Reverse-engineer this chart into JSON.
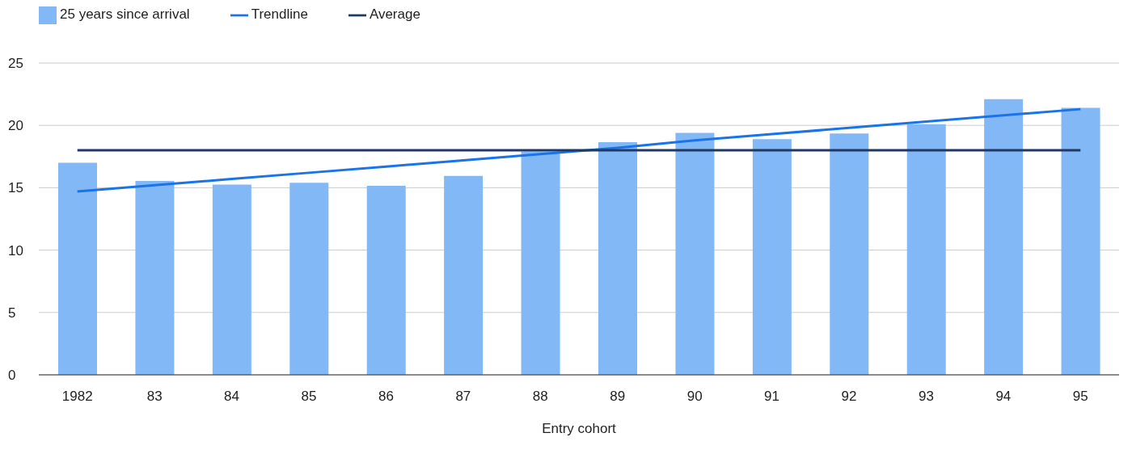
{
  "chart_data": {
    "type": "bar",
    "xlabel": "Entry cohort",
    "categories": [
      "1982",
      "83",
      "84",
      "85",
      "86",
      "87",
      "88",
      "89",
      "90",
      "91",
      "92",
      "93",
      "94",
      "95"
    ],
    "series": [
      {
        "name": "25 years since arrival",
        "color": "#82b8f5",
        "values": [
          17.0,
          15.55,
          15.25,
          15.4,
          15.15,
          15.95,
          17.9,
          18.65,
          19.4,
          18.9,
          19.35,
          20.1,
          22.1,
          21.4
        ]
      },
      {
        "name": "Trendline",
        "type": "line",
        "color": "#1a73e8",
        "values": [
          14.7,
          15.2,
          15.7,
          16.2,
          16.7,
          17.2,
          17.7,
          18.2,
          18.8,
          19.3,
          19.8,
          20.3,
          20.8,
          21.3
        ]
      },
      {
        "name": "Average",
        "type": "line",
        "color": "#1f3864",
        "values": [
          18.0,
          18.0,
          18.0,
          18.0,
          18.0,
          18.0,
          18.0,
          18.0,
          18.0,
          18.0,
          18.0,
          18.0,
          18.0,
          18.0
        ]
      }
    ],
    "ylim": [
      0,
      25
    ],
    "yticks": [
      0,
      5,
      10,
      15,
      20,
      25
    ],
    "grid": "y",
    "legend": "top left",
    "marker": "none"
  }
}
